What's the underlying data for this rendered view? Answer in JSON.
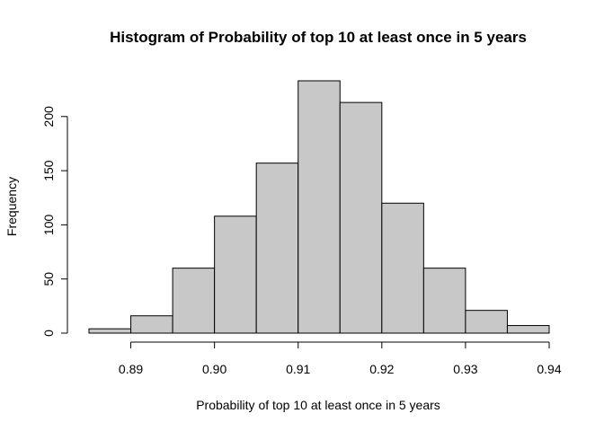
{
  "chart_data": {
    "type": "bar",
    "title": "Histogram of Probability of top 10 at least once in 5 years",
    "xlabel": "Probability of top 10 at least once in 5 years",
    "ylabel": "Frequency",
    "bin_edges": [
      0.885,
      0.89,
      0.895,
      0.9,
      0.905,
      0.91,
      0.915,
      0.92,
      0.925,
      0.93,
      0.935,
      0.94
    ],
    "values": [
      4,
      16,
      60,
      108,
      157,
      233,
      213,
      120,
      60,
      21,
      7
    ],
    "xlim": [
      0.885,
      0.94
    ],
    "ylim": [
      0,
      233
    ],
    "x_ticks": [
      "0.89",
      "0.90",
      "0.91",
      "0.92",
      "0.93",
      "0.94"
    ],
    "y_ticks": [
      "0",
      "50",
      "100",
      "150",
      "200"
    ],
    "grid": false,
    "colors": {
      "bar_fill": "#c8c8c8",
      "bar_stroke": "#000000"
    }
  }
}
